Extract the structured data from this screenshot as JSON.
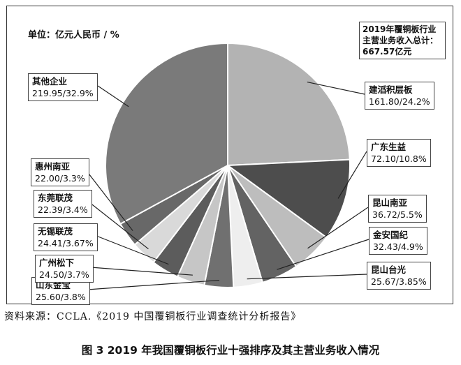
{
  "chart_data": {
    "type": "pie",
    "unit_label": "单位：亿元人民币 / %",
    "total_label_lines": [
      "2019年覆铜板行业",
      "主营业务收入总计：",
      "667.57亿元"
    ],
    "slices": [
      {
        "name": "建滔积层板",
        "value": 161.8,
        "percent": 24.2,
        "label": "161.80/24.2%",
        "color": "#b3b3b3"
      },
      {
        "name": "广东生益",
        "value": 72.1,
        "percent": 10.8,
        "label": "72.10/10.8%",
        "color": "#4d4d4d"
      },
      {
        "name": "昆山南亚",
        "value": 36.72,
        "percent": 5.5,
        "label": "36.72/5.5%",
        "color": "#bdbdbd"
      },
      {
        "name": "金安国纪",
        "value": 32.43,
        "percent": 4.9,
        "label": "32.43/4.9%",
        "color": "#636363"
      },
      {
        "name": "昆山台光",
        "value": 25.67,
        "percent": 3.85,
        "label": "25.67/3.85%",
        "color": "#eeeeee"
      },
      {
        "name": "山东金宝",
        "value": 25.6,
        "percent": 3.8,
        "label": "25.60/3.8%",
        "color": "#707070"
      },
      {
        "name": "广州松下",
        "value": 24.5,
        "percent": 3.7,
        "label": "24.50/3.7%",
        "color": "#c6c6c6"
      },
      {
        "name": "无锡联茂",
        "value": 24.41,
        "percent": 3.67,
        "label": "24.41/3.67%",
        "color": "#5c5c5c"
      },
      {
        "name": "东莞联茂",
        "value": 22.39,
        "percent": 3.4,
        "label": "22.39/3.4%",
        "color": "#d9d9d9"
      },
      {
        "name": "惠州南亚",
        "value": 22.0,
        "percent": 3.3,
        "label": "22.00/3.3%",
        "color": "#686868"
      },
      {
        "name": "其他企业",
        "value": 219.95,
        "percent": 32.9,
        "label": "219.95/32.9%",
        "color": "#7a7a7a"
      }
    ]
  },
  "source_text": "资料来源：CCLA.《2019 中国覆铜板行业调查统计分析报告》",
  "caption": "图 3  2019 年我国覆铜板行业十强排序及其主营业务收入情况"
}
